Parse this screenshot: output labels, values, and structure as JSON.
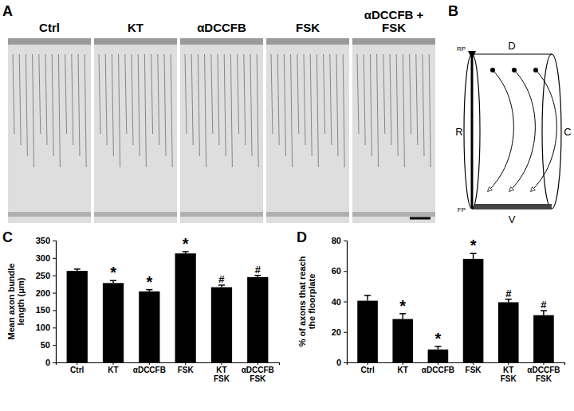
{
  "panel_a": {
    "label": "A",
    "conditions": [
      "Ctrl",
      "KT",
      "αDCCFB",
      "FSK",
      "αDCCFB +\nFSK"
    ]
  },
  "panel_b": {
    "label": "B",
    "dorsal": "D",
    "ventral": "V",
    "rostral": "R",
    "caudal": "C",
    "roof_plate": "RP",
    "floor_plate": "FP"
  },
  "chart_data": [
    {
      "type": "bar",
      "title": "C",
      "y_label": "Mean axon bundle\nlength (μm)",
      "categories": [
        "Ctrl",
        "KT",
        "αDCCFB",
        "FSK",
        "KT\nFSK",
        "αDCCFB\nFSK"
      ],
      "values": [
        263,
        228,
        204,
        313,
        216,
        245
      ],
      "errors": [
        5,
        7,
        5,
        5,
        6,
        5
      ],
      "significance": [
        null,
        "*",
        "*",
        "*",
        "#",
        "#"
      ],
      "color": "#000000",
      "ylim": [
        0,
        350
      ],
      "yticks": [
        0,
        50,
        100,
        150,
        200,
        250,
        300,
        350
      ]
    },
    {
      "type": "bar",
      "title": "D",
      "y_label": "% of axons that reach\nthe floorplate",
      "categories": [
        "Ctrl",
        "KT",
        "αDCCFB",
        "FSK",
        "KT\nFSK",
        "αDCCFB\nFSK"
      ],
      "values": [
        40.5,
        28.5,
        8.5,
        68,
        39.5,
        31
      ],
      "errors": [
        3.5,
        3.5,
        2,
        3.5,
        2,
        3
      ],
      "significance": [
        null,
        "*",
        "*",
        "*",
        "#",
        "#"
      ],
      "color": "#000000",
      "ylim": [
        0,
        80
      ],
      "yticks": [
        0,
        20,
        40,
        60,
        80
      ]
    }
  ]
}
